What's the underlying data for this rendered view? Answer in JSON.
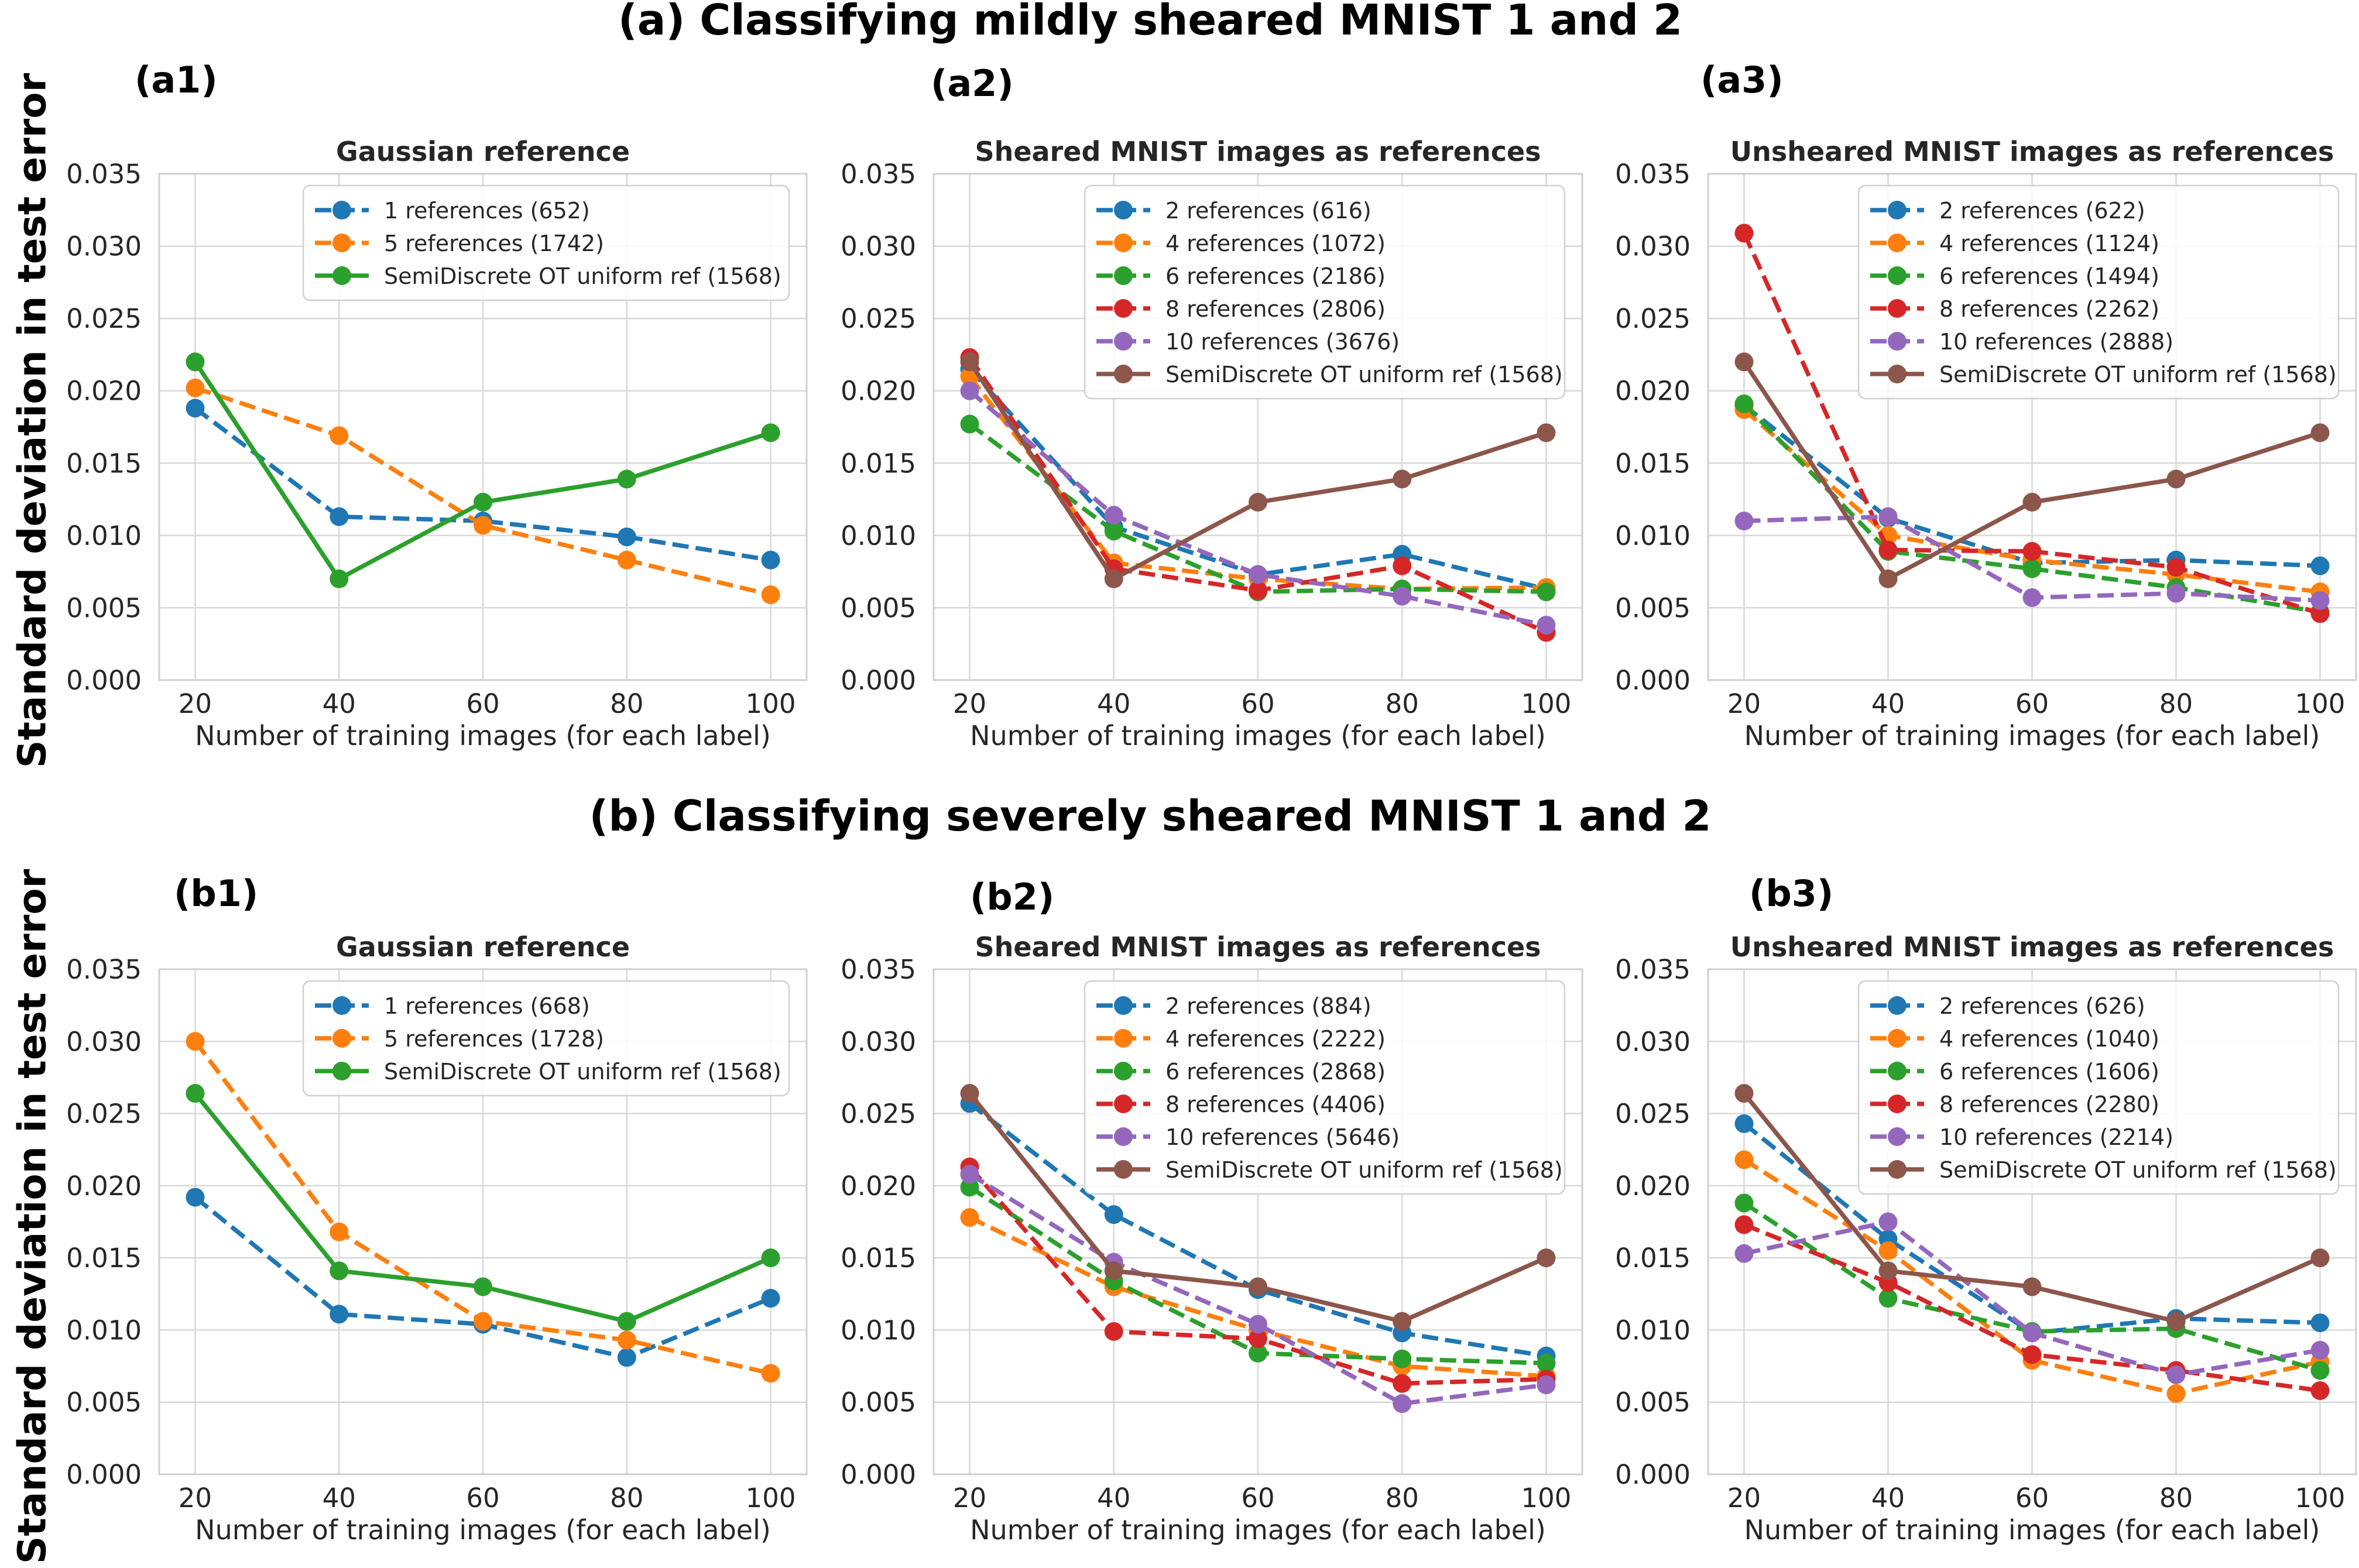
{
  "figure": {
    "row_titles": [
      "(a) Classifying mildly sheared MNIST 1 and 2",
      "(b) Classifying severely sheared MNIST 1 and 2"
    ],
    "row_ylabel": "Standard deviation in test error"
  },
  "colors": {
    "blue": "#1f77b4",
    "orange": "#ff7f0e",
    "green": "#2ca02c",
    "red": "#d62728",
    "purple": "#9467bd",
    "brown": "#8c564b",
    "grid": "#d9d9d9",
    "spine": "#cfcfcf"
  },
  "chart_data": [
    {
      "panel": "(a1)",
      "type": "line",
      "title": "Gaussian reference",
      "xlabel": "Number of training images (for each label)",
      "ylabel": "Standard deviation in test error",
      "x": [
        20,
        40,
        60,
        80,
        100
      ],
      "ylim": [
        0,
        0.035
      ],
      "yticks": [
        "0.000",
        "0.005",
        "0.010",
        "0.015",
        "0.020",
        "0.025",
        "0.030",
        "0.035"
      ],
      "xticks": [
        "20",
        "40",
        "60",
        "80",
        "100"
      ],
      "legend_loc": "top-right",
      "grid": true,
      "series": [
        {
          "name": "1 references (652)",
          "color": "blue",
          "style": "dashed",
          "values": [
            0.0188,
            0.0113,
            0.011,
            0.0099,
            0.0083
          ]
        },
        {
          "name": "5 references (1742)",
          "color": "orange",
          "style": "dashed",
          "values": [
            0.0202,
            0.0169,
            0.0107,
            0.0083,
            0.0059
          ]
        },
        {
          "name": "SemiDiscrete OT uniform ref (1568)",
          "color": "green",
          "style": "solid",
          "values": [
            0.022,
            0.007,
            0.0123,
            0.0139,
            0.0171
          ]
        }
      ]
    },
    {
      "panel": "(a2)",
      "type": "line",
      "title": "Sheared MNIST images as references",
      "xlabel": "Number of training images (for each label)",
      "ylabel": "Standard deviation in test error",
      "x": [
        20,
        40,
        60,
        80,
        100
      ],
      "ylim": [
        0,
        0.035
      ],
      "yticks": [
        "0.000",
        "0.005",
        "0.010",
        "0.015",
        "0.020",
        "0.025",
        "0.030",
        "0.035"
      ],
      "xticks": [
        "20",
        "40",
        "60",
        "80",
        "100"
      ],
      "legend_loc": "top-right",
      "grid": true,
      "series": [
        {
          "name": "2 references (616)",
          "color": "blue",
          "style": "dashed",
          "values": [
            0.0215,
            0.0106,
            0.0073,
            0.0087,
            0.0063
          ]
        },
        {
          "name": "4 references (1072)",
          "color": "orange",
          "style": "dashed",
          "values": [
            0.021,
            0.0081,
            0.007,
            0.0063,
            0.0064
          ]
        },
        {
          "name": "6 references (2186)",
          "color": "green",
          "style": "dashed",
          "values": [
            0.0177,
            0.0103,
            0.0061,
            0.0063,
            0.0061
          ]
        },
        {
          "name": "8 references (2806)",
          "color": "red",
          "style": "dashed",
          "values": [
            0.0223,
            0.0077,
            0.0062,
            0.0079,
            0.0033
          ]
        },
        {
          "name": "10 references (3676)",
          "color": "purple",
          "style": "dashed",
          "values": [
            0.02,
            0.0114,
            0.0073,
            0.0058,
            0.0038
          ]
        },
        {
          "name": "SemiDiscrete OT uniform ref (1568)",
          "color": "brown",
          "style": "solid",
          "values": [
            0.022,
            0.007,
            0.0123,
            0.0139,
            0.0171
          ]
        }
      ]
    },
    {
      "panel": "(a3)",
      "type": "line",
      "title": "Unsheared MNIST images as references",
      "xlabel": "Number of training images (for each label)",
      "ylabel": "Standard deviation in test error",
      "x": [
        20,
        40,
        60,
        80,
        100
      ],
      "ylim": [
        0,
        0.035
      ],
      "yticks": [
        "0.000",
        "0.005",
        "0.010",
        "0.015",
        "0.020",
        "0.025",
        "0.030",
        "0.035"
      ],
      "xticks": [
        "20",
        "40",
        "60",
        "80",
        "100"
      ],
      "legend_loc": "top-right",
      "grid": true,
      "series": [
        {
          "name": "2 references (622)",
          "color": "blue",
          "style": "dashed",
          "values": [
            0.019,
            0.0112,
            0.0081,
            0.0083,
            0.0079
          ]
        },
        {
          "name": "4 references (1124)",
          "color": "orange",
          "style": "dashed",
          "values": [
            0.0187,
            0.01,
            0.0083,
            0.0073,
            0.0061
          ]
        },
        {
          "name": "6 references (1494)",
          "color": "green",
          "style": "dashed",
          "values": [
            0.0191,
            0.0089,
            0.0077,
            0.0064,
            0.0047
          ]
        },
        {
          "name": "8 references (2262)",
          "color": "red",
          "style": "dashed",
          "values": [
            0.0309,
            0.009,
            0.0089,
            0.0078,
            0.0046
          ]
        },
        {
          "name": "10 references (2888)",
          "color": "purple",
          "style": "dashed",
          "values": [
            0.011,
            0.0113,
            0.0057,
            0.006,
            0.0055
          ]
        },
        {
          "name": "SemiDiscrete OT uniform ref (1568)",
          "color": "brown",
          "style": "solid",
          "values": [
            0.022,
            0.007,
            0.0123,
            0.0139,
            0.0171
          ]
        }
      ]
    },
    {
      "panel": "(b1)",
      "type": "line",
      "title": "Gaussian reference",
      "xlabel": "Number of training images (for each label)",
      "ylabel": "Standard deviation in test error",
      "x": [
        20,
        40,
        60,
        80,
        100
      ],
      "ylim": [
        0,
        0.035
      ],
      "yticks": [
        "0.000",
        "0.005",
        "0.010",
        "0.015",
        "0.020",
        "0.025",
        "0.030",
        "0.035"
      ],
      "xticks": [
        "20",
        "40",
        "60",
        "80",
        "100"
      ],
      "legend_loc": "top-right",
      "grid": true,
      "series": [
        {
          "name": "1 references (668)",
          "color": "blue",
          "style": "dashed",
          "values": [
            0.0192,
            0.0111,
            0.0104,
            0.0081,
            0.0122
          ]
        },
        {
          "name": "5 references (1728)",
          "color": "orange",
          "style": "dashed",
          "values": [
            0.03,
            0.0168,
            0.0106,
            0.0093,
            0.007
          ]
        },
        {
          "name": "SemiDiscrete OT uniform ref (1568)",
          "color": "green",
          "style": "solid",
          "values": [
            0.0264,
            0.0141,
            0.013,
            0.0106,
            0.015
          ]
        }
      ]
    },
    {
      "panel": "(b2)",
      "type": "line",
      "title": "Sheared MNIST images as references",
      "xlabel": "Number of training images (for each label)",
      "ylabel": "Standard deviation in test error",
      "x": [
        20,
        40,
        60,
        80,
        100
      ],
      "ylim": [
        0,
        0.035
      ],
      "yticks": [
        "0.000",
        "0.005",
        "0.010",
        "0.015",
        "0.020",
        "0.025",
        "0.030",
        "0.035"
      ],
      "xticks": [
        "20",
        "40",
        "60",
        "80",
        "100"
      ],
      "legend_loc": "top-right",
      "grid": true,
      "series": [
        {
          "name": "2 references (884)",
          "color": "blue",
          "style": "dashed",
          "values": [
            0.0257,
            0.018,
            0.0128,
            0.0098,
            0.0082
          ]
        },
        {
          "name": "4 references (2222)",
          "color": "orange",
          "style": "dashed",
          "values": [
            0.0178,
            0.013,
            0.01,
            0.0075,
            0.0068
          ]
        },
        {
          "name": "6 references (2868)",
          "color": "green",
          "style": "dashed",
          "values": [
            0.0199,
            0.0134,
            0.0084,
            0.008,
            0.0077
          ]
        },
        {
          "name": "8 references (4406)",
          "color": "red",
          "style": "dashed",
          "values": [
            0.0213,
            0.0099,
            0.0094,
            0.0063,
            0.0066
          ]
        },
        {
          "name": "10 references (5646)",
          "color": "purple",
          "style": "dashed",
          "values": [
            0.0208,
            0.0147,
            0.0104,
            0.0049,
            0.0062
          ]
        },
        {
          "name": "SemiDiscrete OT uniform ref (1568)",
          "color": "brown",
          "style": "solid",
          "values": [
            0.0264,
            0.0141,
            0.013,
            0.0106,
            0.015
          ]
        }
      ]
    },
    {
      "panel": "(b3)",
      "type": "line",
      "title": "Unsheared MNIST images as references",
      "xlabel": "Number of training images (for each label)",
      "ylabel": "Standard deviation in test error",
      "x": [
        20,
        40,
        60,
        80,
        100
      ],
      "ylim": [
        0,
        0.035
      ],
      "yticks": [
        "0.000",
        "0.005",
        "0.010",
        "0.015",
        "0.020",
        "0.025",
        "0.030",
        "0.035"
      ],
      "xticks": [
        "20",
        "40",
        "60",
        "80",
        "100"
      ],
      "legend_loc": "top-right",
      "grid": true,
      "series": [
        {
          "name": "2 references (626)",
          "color": "blue",
          "style": "dashed",
          "values": [
            0.0243,
            0.0163,
            0.0098,
            0.0108,
            0.0105
          ]
        },
        {
          "name": "4 references (1040)",
          "color": "orange",
          "style": "dashed",
          "values": [
            0.0218,
            0.0155,
            0.0079,
            0.0056,
            0.0078
          ]
        },
        {
          "name": "6 references (1606)",
          "color": "green",
          "style": "dashed",
          "values": [
            0.0188,
            0.0122,
            0.0099,
            0.0101,
            0.0072
          ]
        },
        {
          "name": "8 references (2280)",
          "color": "red",
          "style": "dashed",
          "values": [
            0.0173,
            0.0133,
            0.0083,
            0.0072,
            0.0058
          ]
        },
        {
          "name": "10 references (2214)",
          "color": "purple",
          "style": "dashed",
          "values": [
            0.0153,
            0.0175,
            0.0098,
            0.0069,
            0.0086
          ]
        },
        {
          "name": "SemiDiscrete OT uniform ref (1568)",
          "color": "brown",
          "style": "solid",
          "values": [
            0.0264,
            0.0141,
            0.013,
            0.0106,
            0.015
          ]
        }
      ]
    }
  ]
}
